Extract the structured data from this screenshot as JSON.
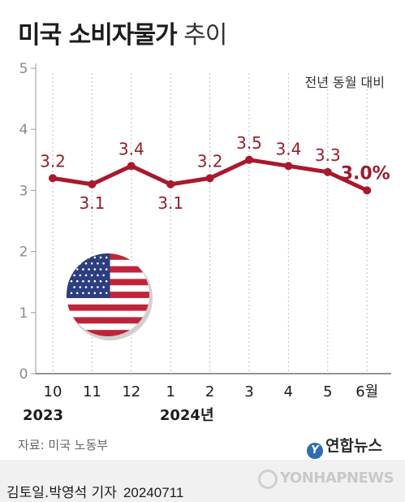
{
  "title": {
    "main": "미국 소비자물가",
    "suffix": "추이"
  },
  "chart_data": {
    "type": "line",
    "title": "미국 소비자물가 추이",
    "unit_note": "전년 동월 대비",
    "categories": [
      "10",
      "11",
      "12",
      "1",
      "2",
      "3",
      "4",
      "5",
      "6월"
    ],
    "year_labels": [
      {
        "text": "2023",
        "category_index": 0
      },
      {
        "text": "2024년",
        "category_index": 3
      }
    ],
    "values": [
      3.2,
      3.1,
      3.4,
      3.1,
      3.2,
      3.5,
      3.4,
      3.3,
      3.0
    ],
    "data_labels": [
      "3.2",
      "3.1",
      "3.4",
      "3.1",
      "3.2",
      "3.5",
      "3.4",
      "3.3",
      "3.0%"
    ],
    "label_above": [
      true,
      false,
      true,
      false,
      true,
      true,
      true,
      true,
      true
    ],
    "yticks": [
      0,
      1,
      2,
      3,
      4,
      5
    ],
    "ylim": [
      0,
      5
    ],
    "line_color": "#a8192e",
    "label_color": "#9a1d2c",
    "highlight_last": true,
    "grid": "vertical-dotted"
  },
  "flag": {
    "icon": "us-flag-icon"
  },
  "source": "자료: 미국 노동부",
  "logo": {
    "mark": "Y",
    "text": "연합뉴스"
  },
  "credit": {
    "author": "김토일.박영석 기자",
    "date": "20240711"
  },
  "watermark": "YONHAPNEWS"
}
